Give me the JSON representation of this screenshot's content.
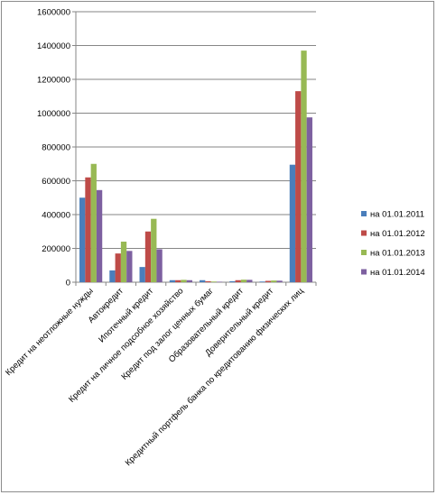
{
  "chart_data": {
    "type": "bar",
    "title": "",
    "xlabel": "",
    "ylabel": "",
    "ylim": [
      0,
      1600000
    ],
    "yticks": [
      0,
      200000,
      400000,
      600000,
      800000,
      1000000,
      1200000,
      1400000,
      1600000
    ],
    "grid": true,
    "legend_position": "right",
    "categories": [
      "Кредит на неотложные нужды",
      "Автокредит",
      "Ипотечный кредит",
      "Кредит на личное подсобное хозяйство",
      "Кредит под залог ценных бумаг",
      "Образовательный кредит",
      "Доверительный кредит",
      "Кредитный портфель банка по кредитованию физических лиц"
    ],
    "series": [
      {
        "name": "на 01.01.2011",
        "color": "#4a7ebb",
        "values": [
          500000,
          70000,
          90000,
          12000,
          12000,
          6000,
          4000,
          695000
        ]
      },
      {
        "name": "на 01.01.2012",
        "color": "#be4b48",
        "values": [
          620000,
          170000,
          300000,
          12000,
          6000,
          12000,
          8000,
          1130000
        ]
      },
      {
        "name": "на 01.01.2013",
        "color": "#98b954",
        "values": [
          700000,
          240000,
          375000,
          14000,
          4000,
          15000,
          10000,
          1370000
        ]
      },
      {
        "name": "на 01.01.2014",
        "color": "#7d60a0",
        "values": [
          545000,
          185000,
          195000,
          12000,
          3000,
          14000,
          9000,
          975000
        ]
      }
    ]
  }
}
